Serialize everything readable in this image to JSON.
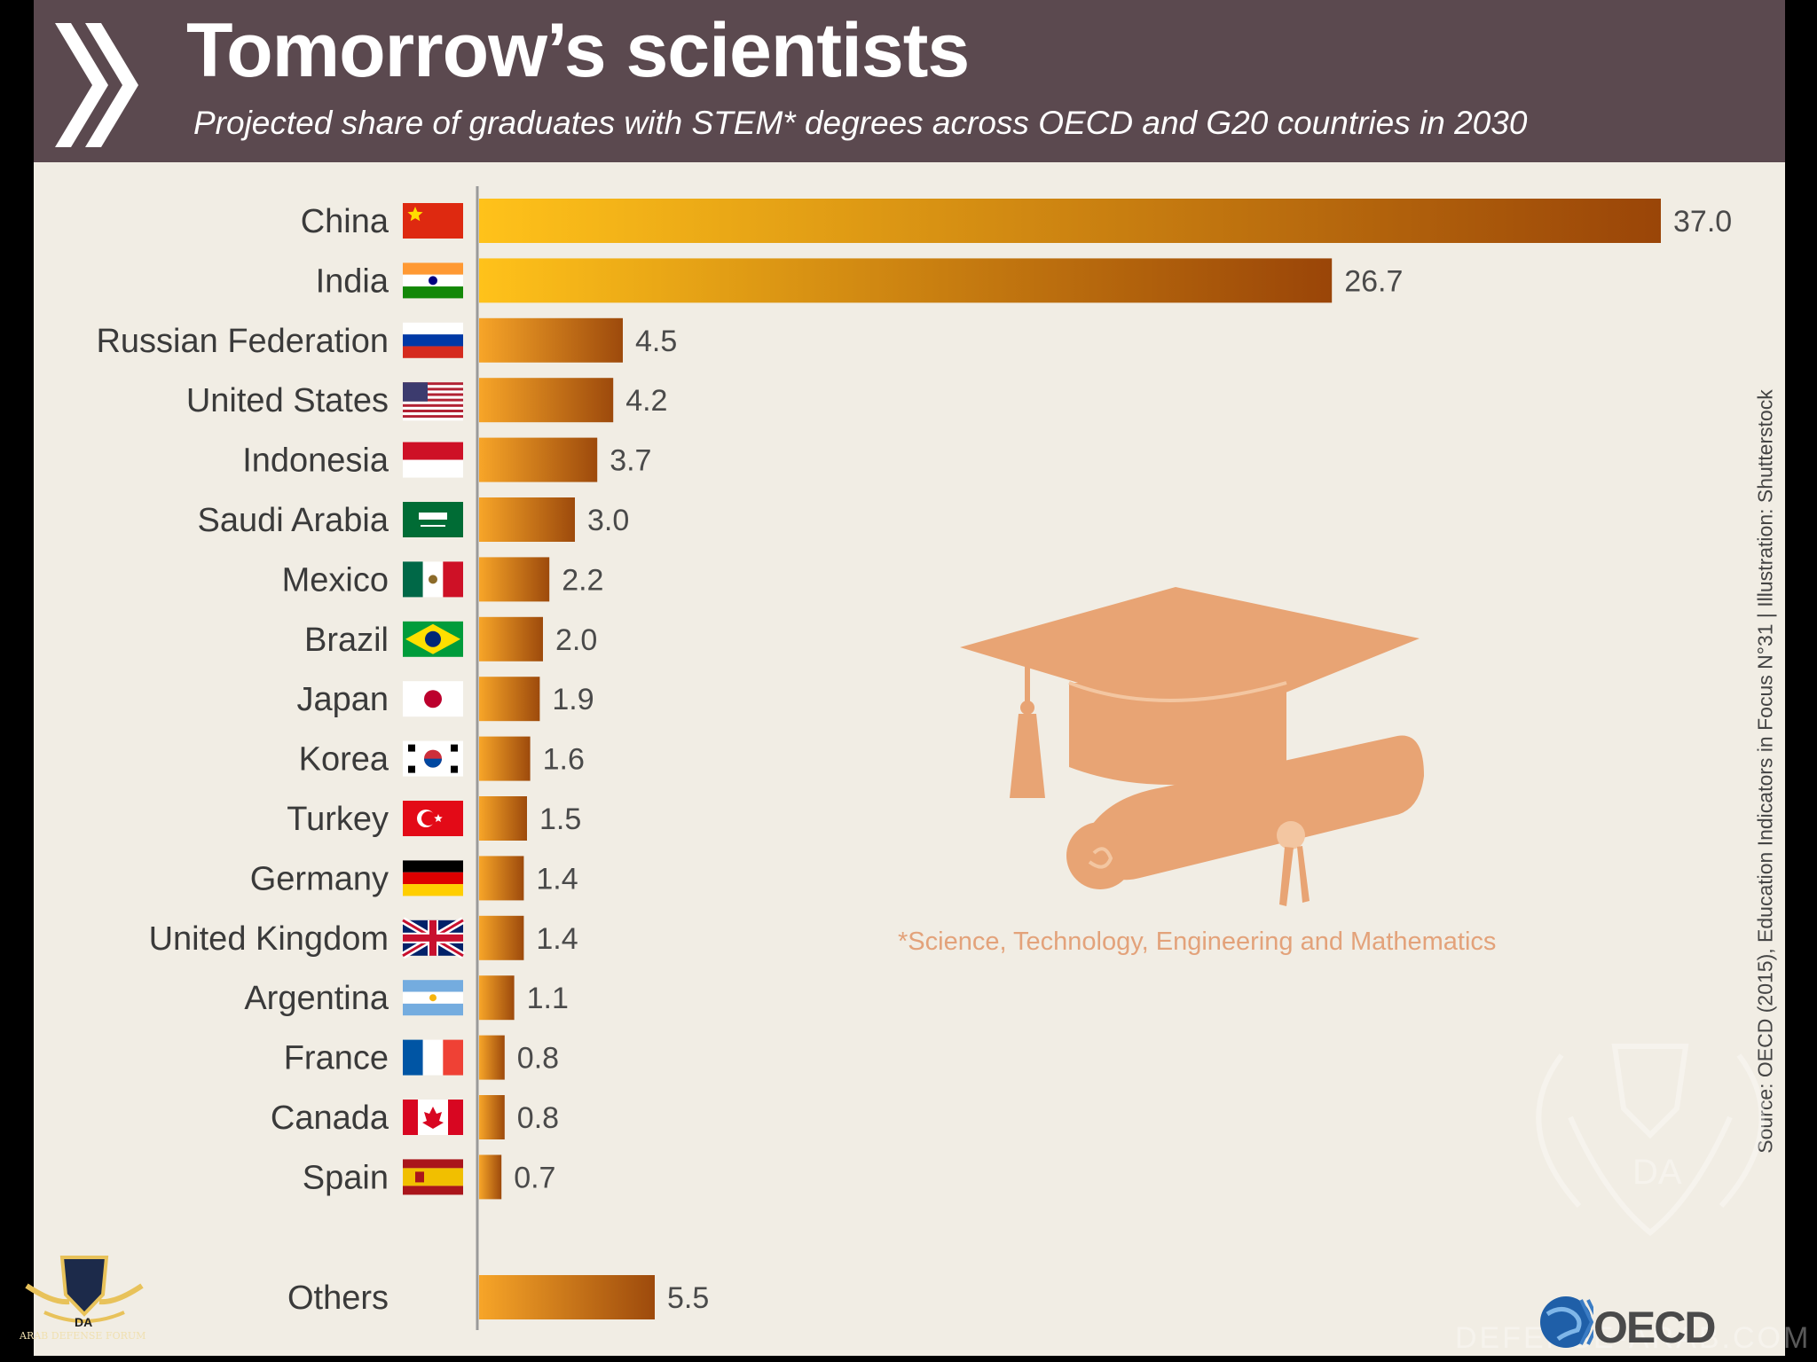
{
  "header": {
    "title": "Tomorrow’s scientists",
    "subtitle": "Projected share of graduates with STEM* degrees across OECD and G20 countries in 2030"
  },
  "footnote": "*Science, Technology, Engineering and Mathematics",
  "source": "Source: OECD (2015), Education Indicators in Focus N°31 | Illustration: Shutterstock",
  "logo": {
    "text": "OECD",
    "icon": "globe-icon"
  },
  "watermark": {
    "text": "DEFENSE-ARAB.COM",
    "icon": "arab-defense-forum-emblem"
  },
  "forum_logo": {
    "text": "ARAB DEFENSE FORUM"
  },
  "illustration": {
    "icon": "graduation-cap-and-diploma"
  },
  "colors": {
    "header_bg": "#5b494f",
    "panel_bg": "#f1ede4",
    "bar_light": "#ffc21a",
    "bar_dark": "#9a4508",
    "illustration": "#e8a474"
  },
  "chart_data": {
    "type": "bar",
    "orientation": "horizontal",
    "title": "Tomorrow’s scientists",
    "subtitle": "Projected share of graduates with STEM* degrees across OECD and G20 countries in 2030",
    "categories": [
      "China",
      "India",
      "Russian Federation",
      "United States",
      "Indonesia",
      "Saudi Arabia",
      "Mexico",
      "Brazil",
      "Japan",
      "Korea",
      "Turkey",
      "Germany",
      "United Kingdom",
      "Argentina",
      "France",
      "Canada",
      "Spain",
      "Others"
    ],
    "flags": [
      "flag-china",
      "flag-india",
      "flag-russia",
      "flag-usa",
      "flag-indonesia",
      "flag-saudi-arabia",
      "flag-mexico",
      "flag-brazil",
      "flag-japan",
      "flag-korea",
      "flag-turkey",
      "flag-germany",
      "flag-uk",
      "flag-argentina",
      "flag-france",
      "flag-canada",
      "flag-spain",
      ""
    ],
    "values": [
      37.0,
      26.7,
      4.5,
      4.2,
      3.7,
      3.0,
      2.2,
      2.0,
      1.9,
      1.6,
      1.5,
      1.4,
      1.4,
      1.1,
      0.8,
      0.8,
      0.7,
      5.5
    ],
    "value_labels": [
      "37.0",
      "26.7",
      "4.5",
      "4.2",
      "3.7",
      "3.0",
      "2.2",
      "2.0",
      "1.9",
      "1.6",
      "1.5",
      "1.4",
      "1.4",
      "1.1",
      "0.8",
      "0.8",
      "0.7",
      "5.5"
    ],
    "xlim": [
      0,
      37.0
    ],
    "grid": false,
    "legend": "none"
  }
}
